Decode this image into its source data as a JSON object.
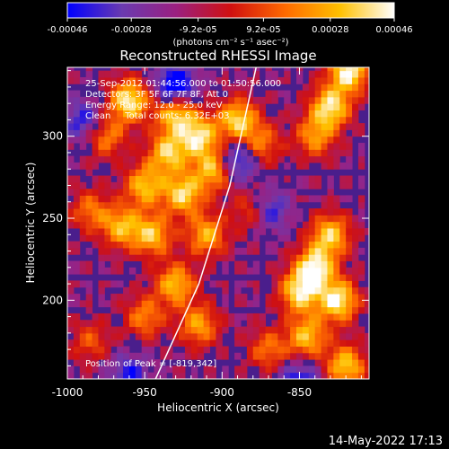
{
  "chart_data": {
    "type": "heatmap",
    "title": "Reconstructed RHESSI Image",
    "xlabel": "Heliocentric X (arcsec)",
    "ylabel": "Heliocentric Y (arcsec)",
    "xlim": [
      -1000,
      -805
    ],
    "ylim": [
      152,
      342
    ],
    "x_ticks": [
      -1000,
      -950,
      -900,
      -850
    ],
    "x_tick_labels": [
      "-1000",
      "-950",
      "-900",
      "-850"
    ],
    "y_ticks": [
      200,
      250,
      300
    ],
    "y_tick_labels": [
      "200",
      "250",
      "300"
    ],
    "colorbar": {
      "range": [
        -0.00046,
        0.00046
      ],
      "ticks": [
        -0.00046,
        -0.00028,
        -9.2e-05,
        9.2e-05,
        0.00028,
        0.00046
      ],
      "tick_labels": [
        "-0.00046",
        "-0.00028",
        "-9.2e-05",
        "9.2e-05",
        "0.00028",
        "0.00046"
      ],
      "units_label": "(photons cm⁻² s⁻¹ asec⁻²)",
      "colors": [
        "#0000ff",
        "#6a3ab0",
        "#9b2080",
        "#d01010",
        "#ff6a00",
        "#ffc000",
        "#ffffff"
      ]
    },
    "info_lines": [
      "25-Sep-2012 01:44:56.000 to 01:50:56.000",
      "Detectors: 3F 5F 6F 7F 8F, Att 0",
      "Energy Range: 12.0 - 25.0 keV",
      "Clean     Total counts: 6.32E+03"
    ],
    "peak_label": "Position of Peak = [-819,342]",
    "peak_position": [
      -819,
      342
    ],
    "limb_line": {
      "x": [
        -943,
        -915,
        -895,
        -878
      ],
      "y": [
        152,
        210,
        270,
        342
      ]
    },
    "hot_spots": [
      {
        "x": -960,
        "y": 322,
        "v": 0.95
      },
      {
        "x": -930,
        "y": 315,
        "v": 0.9
      },
      {
        "x": -915,
        "y": 300,
        "v": 0.85
      },
      {
        "x": -935,
        "y": 290,
        "v": 0.8
      },
      {
        "x": -950,
        "y": 270,
        "v": 0.75
      },
      {
        "x": -965,
        "y": 245,
        "v": 0.7
      },
      {
        "x": -945,
        "y": 240,
        "v": 0.75
      },
      {
        "x": -925,
        "y": 265,
        "v": 0.85
      },
      {
        "x": -905,
        "y": 280,
        "v": 0.8
      },
      {
        "x": -890,
        "y": 310,
        "v": 0.85
      },
      {
        "x": -910,
        "y": 240,
        "v": 0.7
      },
      {
        "x": -930,
        "y": 210,
        "v": 0.75
      },
      {
        "x": -915,
        "y": 185,
        "v": 0.65
      },
      {
        "x": -950,
        "y": 190,
        "v": 0.55
      },
      {
        "x": -985,
        "y": 255,
        "v": 0.5
      },
      {
        "x": -875,
        "y": 295,
        "v": 0.55
      },
      {
        "x": -880,
        "y": 255,
        "v": 0.5
      },
      {
        "x": -840,
        "y": 220,
        "v": 0.95
      },
      {
        "x": -825,
        "y": 200,
        "v": 0.95
      },
      {
        "x": -850,
        "y": 205,
        "v": 0.85
      },
      {
        "x": -830,
        "y": 240,
        "v": 0.8
      },
      {
        "x": -845,
        "y": 178,
        "v": 0.75
      },
      {
        "x": -820,
        "y": 160,
        "v": 0.8
      },
      {
        "x": -830,
        "y": 318,
        "v": 0.9
      },
      {
        "x": -818,
        "y": 340,
        "v": 1.0
      },
      {
        "x": -840,
        "y": 300,
        "v": 0.6
      },
      {
        "x": -870,
        "y": 170,
        "v": 0.5
      },
      {
        "x": -985,
        "y": 175,
        "v": 0.4
      },
      {
        "x": -975,
        "y": 300,
        "v": 0.55
      }
    ],
    "cold_spots": [
      {
        "x": -930,
        "y": 330,
        "v": -0.9
      },
      {
        "x": -890,
        "y": 285,
        "v": -0.7
      },
      {
        "x": -870,
        "y": 255,
        "v": -0.6
      },
      {
        "x": -990,
        "y": 310,
        "v": -0.5
      },
      {
        "x": -850,
        "y": 150,
        "v": -0.6
      },
      {
        "x": -960,
        "y": 155,
        "v": -0.5
      }
    ]
  },
  "footer_timestamp": "14-May-2022 17:13"
}
